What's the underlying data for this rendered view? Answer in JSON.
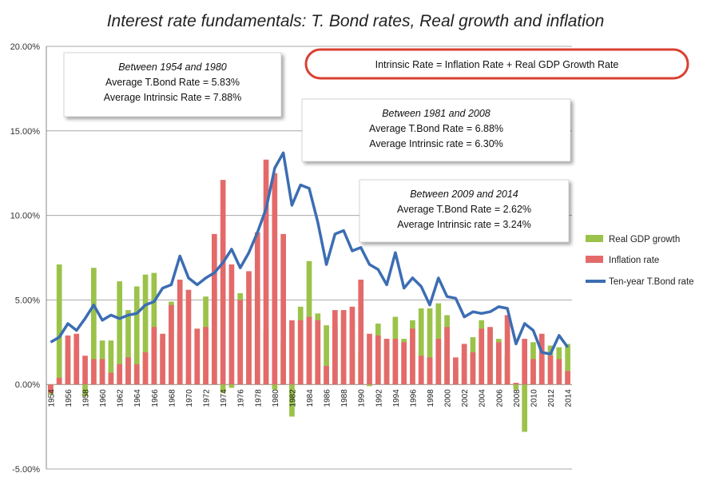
{
  "chart_data": {
    "type": "bar",
    "title": "Interest rate fundamentals: T. Bond rates, Real growth and inflation",
    "xlabel": "",
    "ylabel": "",
    "ylim": [
      -5,
      20
    ],
    "yticks": [
      "-5.00%",
      "0.00%",
      "5.00%",
      "10.00%",
      "15.00%",
      "20.00%"
    ],
    "grid": true,
    "legend_position": "right",
    "years": [
      1954,
      1955,
      1956,
      1957,
      1958,
      1959,
      1960,
      1961,
      1962,
      1963,
      1964,
      1965,
      1966,
      1967,
      1968,
      1969,
      1970,
      1971,
      1972,
      1973,
      1974,
      1975,
      1976,
      1977,
      1978,
      1979,
      1980,
      1981,
      1982,
      1983,
      1984,
      1985,
      1986,
      1987,
      1988,
      1989,
      1990,
      1991,
      1992,
      1993,
      1994,
      1995,
      1996,
      1997,
      1998,
      1999,
      2000,
      2001,
      2002,
      2003,
      2004,
      2005,
      2006,
      2007,
      2008,
      2009,
      2010,
      2011,
      2012,
      2013,
      2014
    ],
    "x_tick_labels": [
      "1954",
      "1956",
      "1958",
      "1960",
      "1962",
      "1964",
      "1966",
      "1968",
      "1970",
      "1972",
      "1974",
      "1976",
      "1978",
      "1980",
      "1982",
      "1984",
      "1986",
      "1988",
      "1990",
      "1992",
      "1994",
      "1996",
      "1998",
      "2000",
      "2002",
      "2004",
      "2006",
      "2008",
      "2010",
      "2012",
      "2014"
    ],
    "series": [
      {
        "name": "Real GDP growth",
        "color": "#9bc34a",
        "values": [
          -0.6,
          7.1,
          2.1,
          2.1,
          -0.7,
          6.9,
          2.6,
          2.6,
          6.1,
          4.4,
          5.8,
          6.5,
          6.6,
          2.7,
          4.9,
          3.1,
          0.2,
          3.3,
          5.2,
          5.6,
          -0.5,
          -0.2,
          5.4,
          4.6,
          5.6,
          3.2,
          -0.3,
          2.5,
          -1.9,
          4.6,
          7.3,
          4.2,
          3.5,
          3.5,
          4.2,
          3.7,
          1.9,
          -0.1,
          3.6,
          2.7,
          4.0,
          2.7,
          3.8,
          4.5,
          4.5,
          4.8,
          4.1,
          1.0,
          1.8,
          2.8,
          3.8,
          3.3,
          2.7,
          1.8,
          -0.3,
          -2.8,
          2.5,
          1.6,
          2.3,
          2.2,
          2.4
        ]
      },
      {
        "name": "Inflation rate",
        "color": "#e46a6a",
        "values": [
          -0.5,
          0.4,
          2.9,
          3.0,
          1.7,
          1.5,
          1.5,
          0.7,
          1.2,
          1.6,
          1.2,
          1.9,
          3.4,
          3.0,
          4.7,
          6.2,
          5.6,
          3.3,
          3.4,
          8.9,
          12.1,
          7.1,
          5.0,
          6.7,
          9.0,
          13.3,
          12.5,
          8.9,
          3.8,
          3.8,
          4.0,
          3.8,
          1.1,
          4.4,
          4.4,
          4.6,
          6.2,
          3.0,
          2.9,
          2.7,
          2.7,
          2.5,
          3.3,
          1.7,
          1.6,
          2.7,
          3.4,
          1.6,
          2.4,
          1.9,
          3.3,
          3.4,
          2.5,
          4.1,
          0.1,
          2.7,
          1.5,
          3.0,
          1.7,
          1.5,
          0.8
        ]
      },
      {
        "name": "Ten-year T.Bond rate",
        "color": "#3c6db3",
        "values": [
          2.5,
          2.8,
          3.6,
          3.2,
          3.9,
          4.7,
          3.8,
          4.1,
          3.9,
          4.1,
          4.2,
          4.7,
          4.9,
          5.7,
          5.9,
          7.6,
          6.3,
          5.9,
          6.3,
          6.6,
          7.2,
          8.0,
          6.9,
          7.8,
          9.0,
          10.4,
          12.8,
          13.7,
          10.6,
          11.8,
          11.6,
          9.6,
          7.1,
          8.9,
          9.1,
          7.9,
          8.1,
          7.1,
          6.8,
          5.9,
          7.8,
          5.7,
          6.3,
          5.8,
          4.7,
          6.3,
          5.2,
          5.1,
          4.0,
          4.3,
          4.2,
          4.3,
          4.6,
          4.5,
          2.4,
          3.6,
          3.2,
          1.9,
          1.8,
          2.9,
          2.2
        ]
      }
    ],
    "annotations": [
      {
        "lines": [
          "Between 1954 and 1980",
          "Average T.Bond Rate = 5.83%",
          "Average Intrinsic Rate = 7.88%"
        ]
      },
      {
        "lines": [
          "Between 1981 and 2008",
          "Average T.Bond Rate = 6.88%",
          "Average Intrinsic rate = 6.30%"
        ]
      },
      {
        "lines": [
          "Between 2009 and 2014",
          "Average T.Bond Rate = 2.62%",
          "Average Intrinsic rate = 3.24%"
        ]
      }
    ],
    "formula": "Intrinsic Rate = Inflation Rate + Real GDP Growth Rate",
    "formula_outline_color": "#d94032"
  }
}
